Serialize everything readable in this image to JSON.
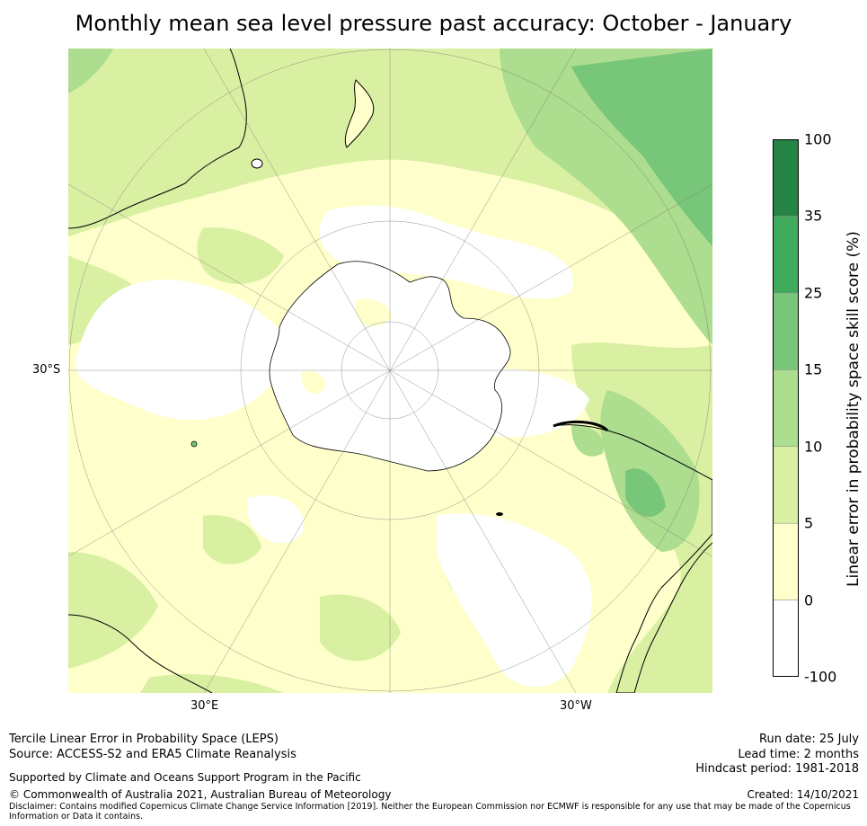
{
  "title": "Monthly mean sea level pressure past accuracy: October - January",
  "map_labels": {
    "lat_left": "30°S",
    "lon_bottom_left": "30°E",
    "lon_bottom_right": "30°W"
  },
  "colorbar": {
    "label": "Linear error in probability space skill score (%)",
    "bands": [
      {
        "from": "-100",
        "to": "0",
        "color": "#ffffff"
      },
      {
        "from": "0",
        "to": "5",
        "color": "#ffffcc"
      },
      {
        "from": "5",
        "to": "10",
        "color": "#d9f0a3"
      },
      {
        "from": "10",
        "to": "15",
        "color": "#addd8e"
      },
      {
        "from": "15",
        "to": "25",
        "color": "#78c679"
      },
      {
        "from": "25",
        "to": "35",
        "color": "#41ab5d"
      },
      {
        "from": "35",
        "to": "100",
        "color": "#238443"
      }
    ],
    "ticks": [
      "-100",
      "0",
      "5",
      "10",
      "15",
      "25",
      "35",
      "100"
    ]
  },
  "footer": {
    "method": "Tercile Linear Error in Probability Space (LEPS)",
    "source": "Source: ACCESS-S2 and ERA5 Climate Reanalysis",
    "support": "Supported by Climate and Oceans Support Program in the Pacific",
    "copyright": "© Commonwealth of Australia 2021, Australian Bureau of Meteorology",
    "disclaimer_line1": "Disclaimer: Contains modified Copernicus Climate Change Service Information [2019]. Neither the European Commission nor ECMWF is responsible for any use that may be made of the Copernicus",
    "disclaimer_line2": "Information or Data it contains.",
    "run_date": "Run date: 25 July",
    "lead_time": "Lead time: 2 months",
    "hindcast": "Hindcast period: 1981-2018",
    "created": "Created: 14/10/2021"
  }
}
